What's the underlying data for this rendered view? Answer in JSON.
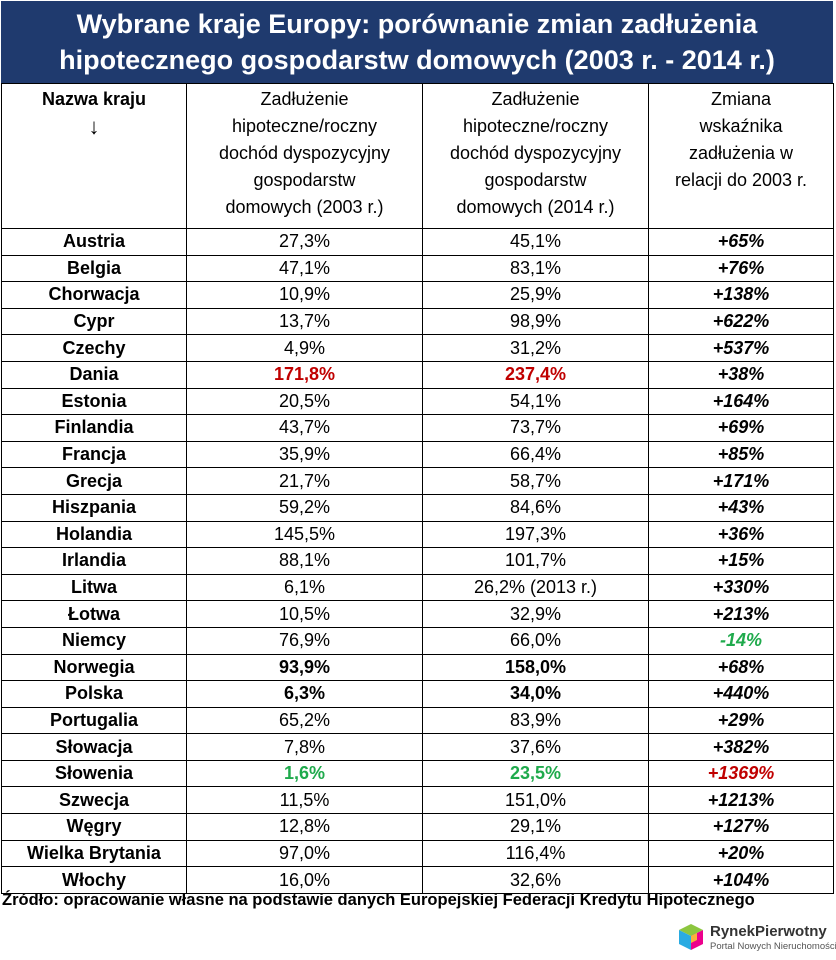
{
  "title": {
    "line1": "Wybrane kraje Europy: porównanie zmian zadłużenia",
    "line2": "hipotecznego gospodarstw domowych (2003 r. - 2014 r.)"
  },
  "headers": {
    "country": "Nazwa kraju",
    "country_arrow": "↓",
    "col2": [
      "Zadłużenie",
      "hipoteczne/roczny",
      "dochód dyspozycyjny",
      "gospodarstw",
      "domowych (2003 r.)"
    ],
    "col3": [
      "Zadłużenie",
      "hipoteczne/roczny",
      "dochód dyspozycyjny",
      "gospodarstw",
      "domowych (2014 r.)"
    ],
    "col4": [
      "Zmiana",
      "wskaźnika",
      "zadłużenia w",
      "relacji do 2003 r."
    ]
  },
  "rows": [
    {
      "country": "Austria",
      "v2003": "27,3%",
      "v2014": "45,1%",
      "change": "+65%"
    },
    {
      "country": "Belgia",
      "v2003": "47,1%",
      "v2014": "83,1%",
      "change": "+76%"
    },
    {
      "country": "Chorwacja",
      "v2003": "10,9%",
      "v2014": "25,9%",
      "change": "+138%"
    },
    {
      "country": "Cypr",
      "v2003": "13,7%",
      "v2014": "98,9%",
      "change": "+622%"
    },
    {
      "country": "Czechy",
      "v2003": "4,9%",
      "v2014": "31,2%",
      "change": "+537%"
    },
    {
      "country": "Dania",
      "v2003": "171,8%",
      "v2014": "237,4%",
      "change": "+38%",
      "s2003": "red",
      "s2014": "red"
    },
    {
      "country": "Estonia",
      "v2003": "20,5%",
      "v2014": "54,1%",
      "change": "+164%"
    },
    {
      "country": "Finlandia",
      "v2003": "43,7%",
      "v2014": "73,7%",
      "change": "+69%"
    },
    {
      "country": "Francja",
      "v2003": "35,9%",
      "v2014": "66,4%",
      "change": "+85%"
    },
    {
      "country": "Grecja",
      "v2003": "21,7%",
      "v2014": "58,7%",
      "change": "+171%"
    },
    {
      "country": "Hiszpania",
      "v2003": "59,2%",
      "v2014": "84,6%",
      "change": "+43%"
    },
    {
      "country": "Holandia",
      "v2003": "145,5%",
      "v2014": "197,3%",
      "change": "+36%"
    },
    {
      "country": "Irlandia",
      "v2003": "88,1%",
      "v2014": "101,7%",
      "change": "+15%"
    },
    {
      "country": "Litwa",
      "v2003": "6,1%",
      "v2014": "26,2% (2013 r.)",
      "change": "+330%"
    },
    {
      "country": "Łotwa",
      "v2003": "10,5%",
      "v2014": "32,9%",
      "change": "+213%"
    },
    {
      "country": "Niemcy",
      "v2003": "76,9%",
      "v2014": "66,0%",
      "change": "-14%",
      "sChange": "green"
    },
    {
      "country": "Norwegia",
      "v2003": "93,9%",
      "v2014": "158,0%",
      "change": "+68%",
      "s2003": "b",
      "s2014": "b"
    },
    {
      "country": "Polska",
      "v2003": "6,3%",
      "v2014": "34,0%",
      "change": "+440%",
      "s2003": "b",
      "s2014": "b"
    },
    {
      "country": "Portugalia",
      "v2003": "65,2%",
      "v2014": "83,9%",
      "change": "+29%"
    },
    {
      "country": "Słowacja",
      "v2003": "7,8%",
      "v2014": "37,6%",
      "change": "+382%"
    },
    {
      "country": "Słowenia",
      "v2003": "1,6%",
      "v2014": "23,5%",
      "change": "+1369%",
      "s2003": "green",
      "s2014": "green",
      "sChange": "red"
    },
    {
      "country": "Szwecja",
      "v2003": "11,5%",
      "v2014": "151,0%",
      "change": "+1213%"
    },
    {
      "country": "Węgry",
      "v2003": "12,8%",
      "v2014": "29,1%",
      "change": "+127%"
    },
    {
      "country": "Wielka Brytania",
      "v2003": "97,0%",
      "v2014": "116,4%",
      "change": "+20%"
    },
    {
      "country": "Włochy",
      "v2003": "16,0%",
      "v2014": "32,6%",
      "change": "+104%"
    }
  ],
  "source": "Źródło: opracowanie własne na podstawie danych Europejskiej Federacji Kredytu Hipotecznego",
  "logo": {
    "name": "RynekPierwotny",
    "tagline": "Portal Nowych Nieruchomości"
  },
  "colors": {
    "title_bg": "#1f3a6e",
    "red": "#c00000",
    "green": "#1faa4c"
  }
}
